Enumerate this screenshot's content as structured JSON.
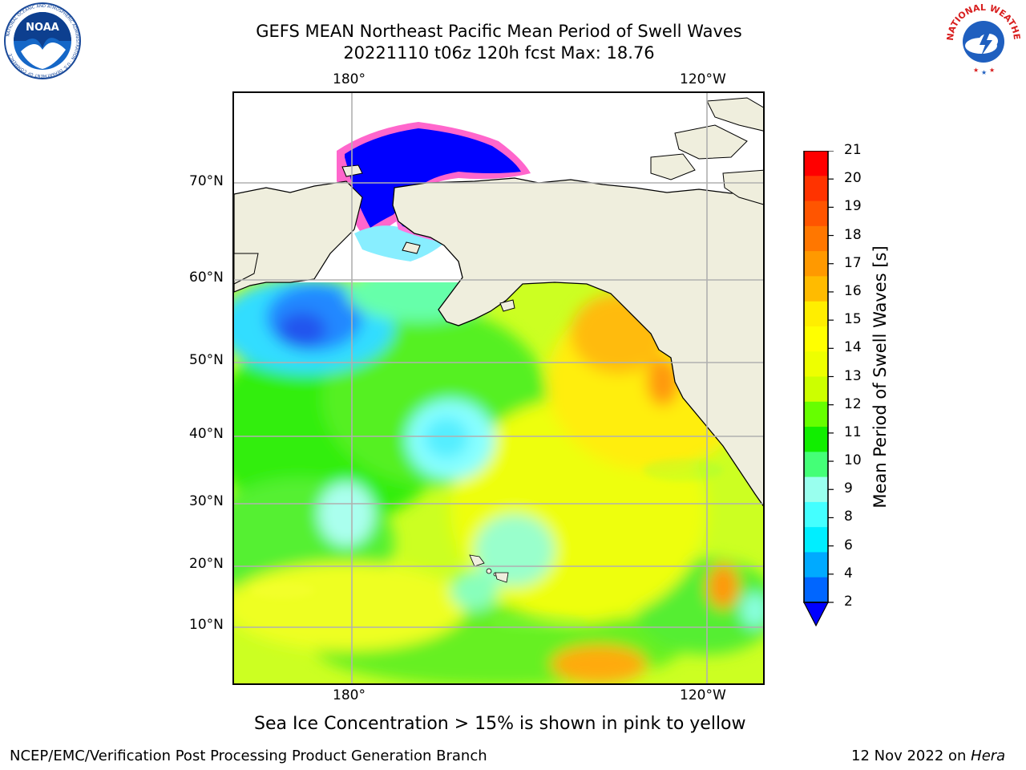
{
  "title": {
    "line1": "GEFS MEAN Northeast Pacific Mean Period of Swell Waves",
    "line2": "20221110 t06z 120h fcst   Max: 18.76"
  },
  "logos": {
    "noaa": {
      "text": "NOAA",
      "ring_text": "NATIONAL OCEANIC AND ATMOSPHERIC ADMINISTRATION · U.S. DEPARTMENT OF COMMERCE"
    },
    "nws": {
      "ring_text": "NATIONAL WEATHER SERVICE"
    }
  },
  "map": {
    "lon_labels_top": [
      "180°",
      "120°W"
    ],
    "lon_labels_bottom": [
      "180°",
      "120°W"
    ],
    "lat_labels": [
      "70°N",
      "60°N",
      "50°N",
      "40°N",
      "30°N",
      "20°N",
      "10°N"
    ],
    "colors": {
      "land": "#efeedd",
      "grid": "#b0b0b0",
      "coast": "#000000"
    }
  },
  "colorbar": {
    "label": "Mean Period of Swell Waves [s]",
    "ticks": [
      "21",
      "20",
      "19",
      "18",
      "17",
      "16",
      "15",
      "14",
      "13",
      "12",
      "11",
      "10",
      "9",
      "8",
      "6",
      "4",
      "2"
    ],
    "colors_top_to_bottom": [
      "#ff0000",
      "#ff3300",
      "#ff5500",
      "#ff7700",
      "#ff9900",
      "#ffbb00",
      "#ffee00",
      "#ffff00",
      "#eeff00",
      "#ccff00",
      "#66ff00",
      "#11ee00",
      "#44ff77",
      "#99ffee",
      "#44ffff",
      "#00eeff",
      "#00aaff",
      "#0066ff"
    ],
    "extend_color": "#0000ff"
  },
  "note": "Sea Ice Concentration > 15% is shown in pink to yellow",
  "footer": {
    "left": "NCEP/EMC/Verification Post Processing Product Generation Branch",
    "date": "12 Nov 2022 on",
    "machine": "Hera"
  }
}
